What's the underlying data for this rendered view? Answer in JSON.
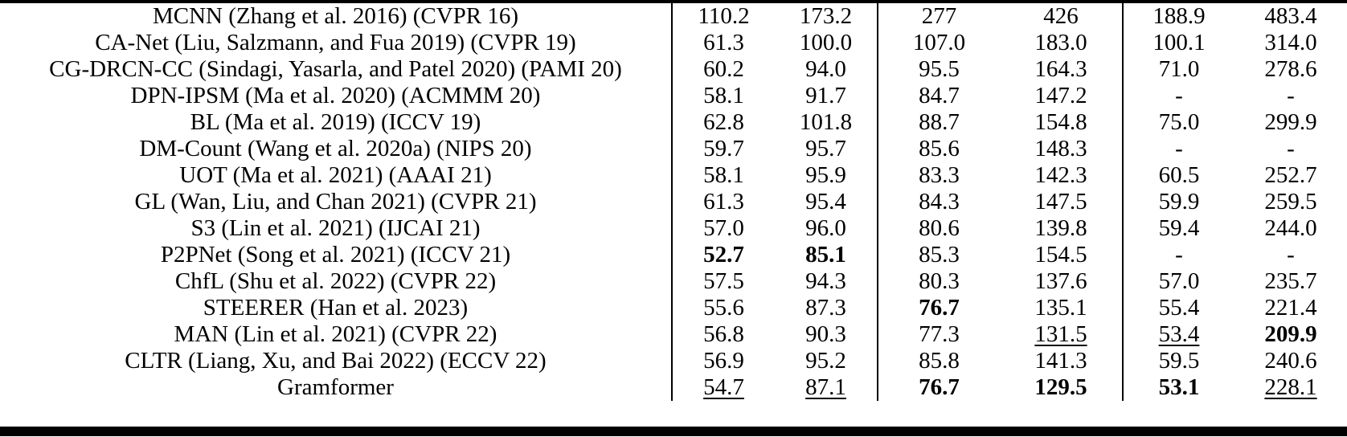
{
  "colors": {
    "background": "#ffffff",
    "text": "#000000",
    "rule": "#000000"
  },
  "table": {
    "description": "Benchmark comparison table of crowd counting methods; six numeric columns in three dataset groups; bold = best, underline = second best",
    "missing_value": "-",
    "rows": [
      {
        "method": "MCNN (Zhang et al. 2016) (CVPR 16)",
        "values": [
          {
            "text": "110.2",
            "style": ""
          },
          {
            "text": "173.2",
            "style": ""
          },
          {
            "text": "277",
            "style": ""
          },
          {
            "text": "426",
            "style": ""
          },
          {
            "text": "188.9",
            "style": ""
          },
          {
            "text": "483.4",
            "style": ""
          }
        ]
      },
      {
        "method": "CA-Net (Liu, Salzmann, and Fua 2019) (CVPR 19)",
        "values": [
          {
            "text": "61.3",
            "style": ""
          },
          {
            "text": "100.0",
            "style": ""
          },
          {
            "text": "107.0",
            "style": ""
          },
          {
            "text": "183.0",
            "style": ""
          },
          {
            "text": "100.1",
            "style": ""
          },
          {
            "text": "314.0",
            "style": ""
          }
        ]
      },
      {
        "method": "CG-DRCN-CC (Sindagi, Yasarla, and Patel 2020) (PAMI 20)",
        "values": [
          {
            "text": "60.2",
            "style": ""
          },
          {
            "text": "94.0",
            "style": ""
          },
          {
            "text": "95.5",
            "style": ""
          },
          {
            "text": "164.3",
            "style": ""
          },
          {
            "text": "71.0",
            "style": ""
          },
          {
            "text": "278.6",
            "style": ""
          }
        ]
      },
      {
        "method": "DPN-IPSM (Ma et al. 2020) (ACMMM 20)",
        "values": [
          {
            "text": "58.1",
            "style": ""
          },
          {
            "text": "91.7",
            "style": ""
          },
          {
            "text": "84.7",
            "style": ""
          },
          {
            "text": "147.2",
            "style": ""
          },
          {
            "text": "-",
            "style": ""
          },
          {
            "text": "-",
            "style": ""
          }
        ]
      },
      {
        "method": "BL (Ma et al. 2019) (ICCV 19)",
        "values": [
          {
            "text": "62.8",
            "style": ""
          },
          {
            "text": "101.8",
            "style": ""
          },
          {
            "text": "88.7",
            "style": ""
          },
          {
            "text": "154.8",
            "style": ""
          },
          {
            "text": "75.0",
            "style": ""
          },
          {
            "text": "299.9",
            "style": ""
          }
        ]
      },
      {
        "method": "DM-Count (Wang et al. 2020a) (NIPS 20)",
        "values": [
          {
            "text": "59.7",
            "style": ""
          },
          {
            "text": "95.7",
            "style": ""
          },
          {
            "text": "85.6",
            "style": ""
          },
          {
            "text": "148.3",
            "style": ""
          },
          {
            "text": "-",
            "style": ""
          },
          {
            "text": "-",
            "style": ""
          }
        ]
      },
      {
        "method": "UOT (Ma et al. 2021) (AAAI 21)",
        "values": [
          {
            "text": "58.1",
            "style": ""
          },
          {
            "text": "95.9",
            "style": ""
          },
          {
            "text": "83.3",
            "style": ""
          },
          {
            "text": "142.3",
            "style": ""
          },
          {
            "text": "60.5",
            "style": ""
          },
          {
            "text": "252.7",
            "style": ""
          }
        ]
      },
      {
        "method": "GL (Wan, Liu, and Chan 2021) (CVPR 21)",
        "values": [
          {
            "text": "61.3",
            "style": ""
          },
          {
            "text": "95.4",
            "style": ""
          },
          {
            "text": "84.3",
            "style": ""
          },
          {
            "text": "147.5",
            "style": ""
          },
          {
            "text": "59.9",
            "style": ""
          },
          {
            "text": "259.5",
            "style": ""
          }
        ]
      },
      {
        "method": "S3 (Lin et al. 2021) (IJCAI 21)",
        "values": [
          {
            "text": "57.0",
            "style": ""
          },
          {
            "text": "96.0",
            "style": ""
          },
          {
            "text": "80.6",
            "style": ""
          },
          {
            "text": "139.8",
            "style": ""
          },
          {
            "text": "59.4",
            "style": ""
          },
          {
            "text": "244.0",
            "style": ""
          }
        ]
      },
      {
        "method": "P2PNet (Song et al. 2021) (ICCV 21)",
        "values": [
          {
            "text": "52.7",
            "style": "bold"
          },
          {
            "text": "85.1",
            "style": "bold"
          },
          {
            "text": "85.3",
            "style": ""
          },
          {
            "text": "154.5",
            "style": ""
          },
          {
            "text": "-",
            "style": ""
          },
          {
            "text": "-",
            "style": ""
          }
        ]
      },
      {
        "method": "ChfL (Shu et al. 2022) (CVPR 22)",
        "values": [
          {
            "text": "57.5",
            "style": ""
          },
          {
            "text": "94.3",
            "style": ""
          },
          {
            "text": "80.3",
            "style": ""
          },
          {
            "text": "137.6",
            "style": ""
          },
          {
            "text": "57.0",
            "style": ""
          },
          {
            "text": "235.7",
            "style": ""
          }
        ]
      },
      {
        "method": "STEERER (Han et al. 2023)",
        "values": [
          {
            "text": "55.6",
            "style": ""
          },
          {
            "text": "87.3",
            "style": ""
          },
          {
            "text": "76.7",
            "style": "bold"
          },
          {
            "text": "135.1",
            "style": ""
          },
          {
            "text": "55.4",
            "style": ""
          },
          {
            "text": "221.4",
            "style": ""
          }
        ]
      },
      {
        "method": "MAN (Lin et al. 2021) (CVPR 22)",
        "values": [
          {
            "text": "56.8",
            "style": ""
          },
          {
            "text": "90.3",
            "style": ""
          },
          {
            "text": "77.3",
            "style": ""
          },
          {
            "text": "131.5",
            "style": "underline"
          },
          {
            "text": "53.4",
            "style": "underline"
          },
          {
            "text": "209.9",
            "style": "bold"
          }
        ]
      },
      {
        "method": "CLTR (Liang, Xu, and Bai 2022) (ECCV 22)",
        "values": [
          {
            "text": "56.9",
            "style": ""
          },
          {
            "text": "95.2",
            "style": ""
          },
          {
            "text": "85.8",
            "style": ""
          },
          {
            "text": "141.3",
            "style": ""
          },
          {
            "text": "59.5",
            "style": ""
          },
          {
            "text": "240.6",
            "style": ""
          }
        ]
      },
      {
        "method": "Gramformer",
        "values": [
          {
            "text": "54.7",
            "style": "underline"
          },
          {
            "text": "87.1",
            "style": "underline"
          },
          {
            "text": "76.7",
            "style": "bold"
          },
          {
            "text": "129.5",
            "style": "bold"
          },
          {
            "text": "53.1",
            "style": "bold"
          },
          {
            "text": "228.1",
            "style": "underline"
          }
        ]
      }
    ]
  }
}
